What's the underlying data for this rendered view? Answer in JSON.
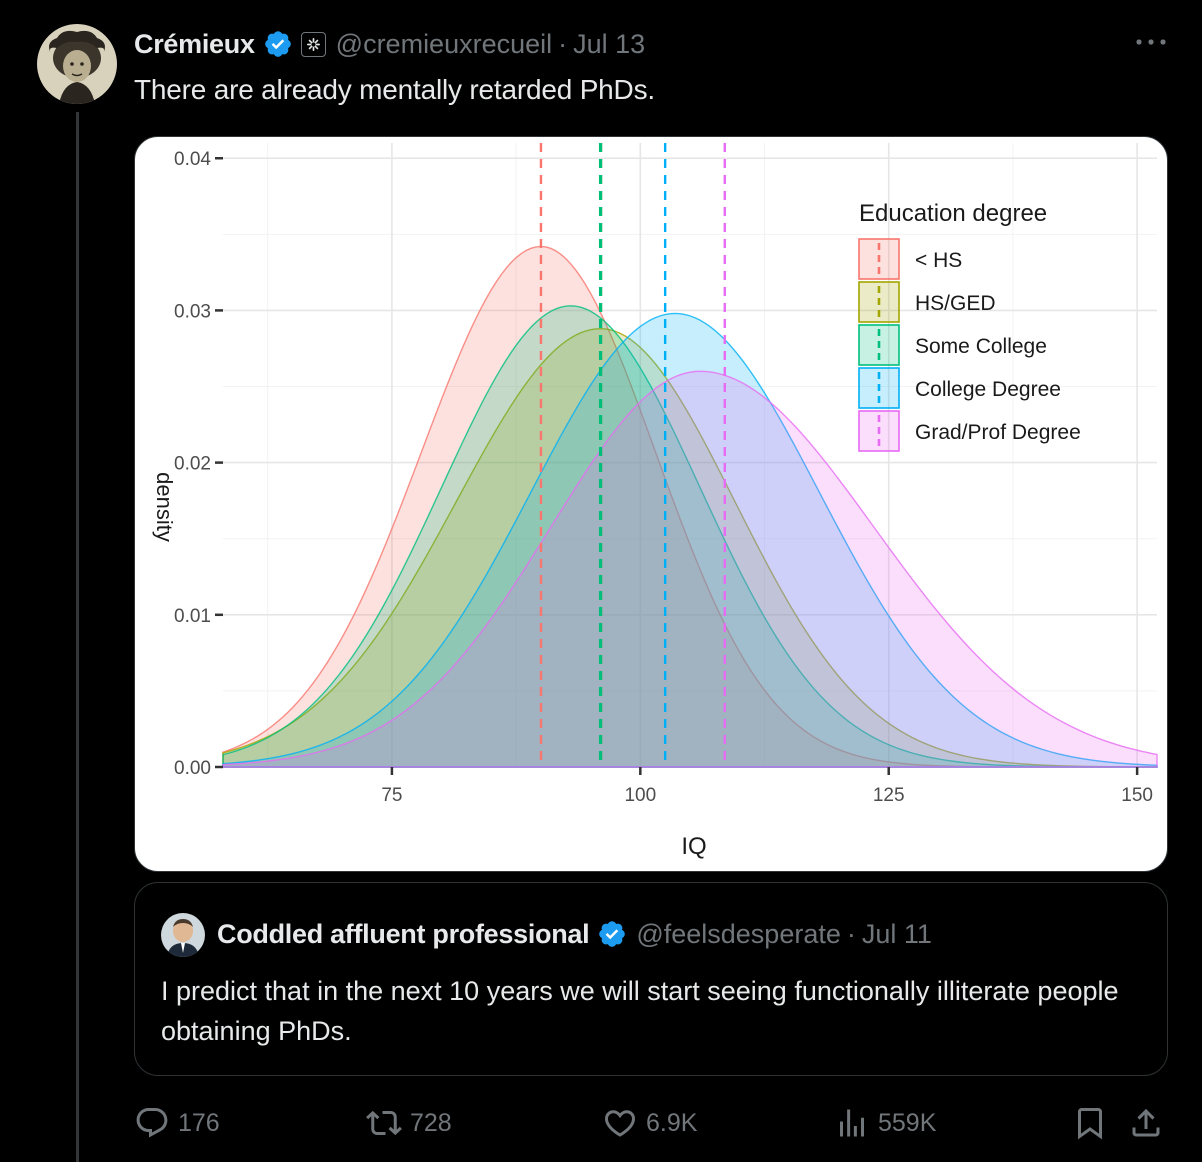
{
  "tweet": {
    "author_name": "Crémieux",
    "handle": "@cremieuxrecueil",
    "separator": "·",
    "date": "Jul 13",
    "text": "There are already mentally retarded PhDs.",
    "more_icon": "ellipsis-icon"
  },
  "quote": {
    "author_name": "Coddled affluent professional",
    "handle": "@feelsdesperate",
    "separator": "·",
    "date": "Jul 11",
    "text": "I predict that in the next 10 years we will start seeing functionally illiterate people obtaining PhDs."
  },
  "actions": {
    "replies": "176",
    "reposts": "728",
    "likes": "6.9K",
    "views": "559K"
  },
  "colors": {
    "background": "#000000",
    "text": "#e7e9ea",
    "muted": "#71767b",
    "verified": "#1d9bf0",
    "border": "#2f3336"
  },
  "chart_data": {
    "type": "area",
    "title": "",
    "xlabel": "IQ",
    "ylabel": "density",
    "xlim": [
      58,
      152
    ],
    "ylim": [
      0,
      0.041
    ],
    "x_ticks": [
      75,
      100,
      125,
      150
    ],
    "x_tick_labels": [
      "75",
      "100",
      "125",
      "150"
    ],
    "y_ticks": [
      0,
      0.01,
      0.02,
      0.03,
      0.04
    ],
    "y_tick_labels": [
      "0.00",
      "0.01",
      "0.02",
      "0.03",
      "0.04"
    ],
    "grid": true,
    "legend_title": "Education degree",
    "legend_position": "top-right",
    "series": [
      {
        "name": "< HS",
        "color": "#f8766d",
        "peak_x": 90,
        "peak_density": 0.0342,
        "mean_line": 90
      },
      {
        "name": "HS/GED",
        "color": "#a3a500",
        "peak_x": 96,
        "peak_density": 0.0288,
        "mean_line": 96
      },
      {
        "name": "Some College",
        "color": "#00bf7d",
        "peak_x": 93,
        "peak_density": 0.0303,
        "mean_line": 96
      },
      {
        "name": "College Degree",
        "color": "#00b0f6",
        "peak_x": 103.5,
        "peak_density": 0.0298,
        "mean_line": 102.5
      },
      {
        "name": "Grad/Prof Degree",
        "color": "#e76bf3",
        "peak_x": 106,
        "peak_density": 0.026,
        "mean_line": 108.5
      }
    ]
  }
}
